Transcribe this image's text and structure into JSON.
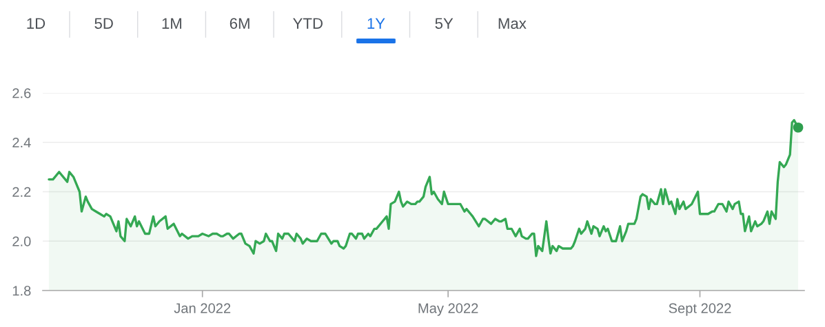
{
  "chart_data": {
    "type": "area",
    "annotations": [
      "1D",
      "5D",
      "1M",
      "6M",
      "YTD",
      "1Y",
      "5Y",
      "Max"
    ],
    "xlim": [
      "2021-10-15",
      "2022-10-22"
    ],
    "xticks": [
      {
        "value": "2022-01-01",
        "label": "Jan 2022"
      },
      {
        "value": "2022-05-01",
        "label": "May 2022"
      },
      {
        "value": "2022-09-01",
        "label": "Sept 2022"
      }
    ],
    "ylim": [
      1.8,
      2.6
    ],
    "yticks": [
      1.8,
      {
        "value": 2,
        "label": "2.0"
      },
      2.2,
      2.4,
      2.6
    ],
    "grid": "y",
    "x": [
      "2021-10-18",
      "2021-10-20",
      "2021-10-23",
      "2021-10-27",
      "2021-10-28",
      "2021-10-30",
      "2021-10-31",
      "2021-11-02",
      "2021-11-03",
      "2021-11-05",
      "2021-11-06",
      "2021-11-08",
      "2021-11-10",
      "2021-11-12",
      "2021-11-14",
      "2021-11-15",
      "2021-11-17",
      "2021-11-20",
      "2021-11-21",
      "2021-11-22",
      "2021-11-24",
      "2021-11-25",
      "2021-11-27",
      "2021-11-29",
      "2021-11-30",
      "2021-12-01",
      "2021-12-04",
      "2021-12-06",
      "2021-12-08",
      "2021-12-09",
      "2021-12-11",
      "2021-12-14",
      "2021-12-15",
      "2021-12-18",
      "2021-12-21",
      "2021-12-22",
      "2021-12-25",
      "2021-12-27",
      "2021-12-30",
      "2022-01-01",
      "2022-01-04",
      "2022-01-06",
      "2022-01-08",
      "2022-01-10",
      "2022-01-11",
      "2022-01-13",
      "2022-01-14",
      "2022-01-16",
      "2022-01-19",
      "2022-01-20",
      "2022-01-22",
      "2022-01-24",
      "2022-01-26",
      "2022-01-27",
      "2022-01-29",
      "2022-01-31",
      "2022-02-01",
      "2022-02-03",
      "2022-02-04",
      "2022-02-06",
      "2022-02-07",
      "2022-02-09",
      "2022-02-10",
      "2022-02-12",
      "2022-02-15",
      "2022-02-16",
      "2022-02-18",
      "2022-02-19",
      "2022-02-21",
      "2022-02-23",
      "2022-02-26",
      "2022-02-28",
      "2022-03-02",
      "2022-03-05",
      "2022-03-06",
      "2022-03-08",
      "2022-03-09",
      "2022-03-11",
      "2022-03-12",
      "2022-03-14",
      "2022-03-15",
      "2022-03-17",
      "2022-03-18",
      "2022-03-20",
      "2022-03-21",
      "2022-03-23",
      "2022-03-24",
      "2022-03-26",
      "2022-03-27",
      "2022-03-30",
      "2022-04-01",
      "2022-04-02",
      "2022-04-03",
      "2022-04-05",
      "2022-04-07",
      "2022-04-08",
      "2022-04-09",
      "2022-04-11",
      "2022-04-13",
      "2022-04-15",
      "2022-04-16",
      "2022-04-17",
      "2022-04-19",
      "2022-04-20",
      "2022-04-22",
      "2022-04-23",
      "2022-04-24",
      "2022-04-26",
      "2022-04-28",
      "2022-04-29",
      "2022-05-01",
      "2022-05-07",
      "2022-05-09",
      "2022-05-10",
      "2022-05-12",
      "2022-05-13",
      "2022-05-16",
      "2022-05-18",
      "2022-05-19",
      "2022-05-22",
      "2022-05-24",
      "2022-05-26",
      "2022-05-27",
      "2022-05-29",
      "2022-05-30",
      "2022-06-01",
      "2022-06-03",
      "2022-06-05",
      "2022-06-06",
      "2022-06-08",
      "2022-06-09",
      "2022-06-11",
      "2022-06-12",
      "2022-06-13",
      "2022-06-14",
      "2022-06-16",
      "2022-06-18",
      "2022-06-19",
      "2022-06-20",
      "2022-06-21",
      "2022-06-23",
      "2022-06-24",
      "2022-06-26",
      "2022-06-30",
      "2022-07-01",
      "2022-07-02",
      "2022-07-04",
      "2022-07-05",
      "2022-07-07",
      "2022-07-08",
      "2022-07-10",
      "2022-07-11",
      "2022-07-13",
      "2022-07-14",
      "2022-07-16",
      "2022-07-17",
      "2022-07-18",
      "2022-07-20",
      "2022-07-22",
      "2022-07-24",
      "2022-07-25",
      "2022-07-27",
      "2022-07-28",
      "2022-07-31",
      "2022-08-01",
      "2022-08-03",
      "2022-08-04",
      "2022-08-06",
      "2022-08-07",
      "2022-08-08",
      "2022-08-10",
      "2022-08-11",
      "2022-08-13",
      "2022-08-14",
      "2022-08-15",
      "2022-08-17",
      "2022-08-18",
      "2022-08-20",
      "2022-08-21",
      "2022-08-22",
      "2022-08-24",
      "2022-08-25",
      "2022-08-28",
      "2022-08-31",
      "2022-09-01",
      "2022-09-05",
      "2022-09-07",
      "2022-09-08",
      "2022-09-10",
      "2022-09-12",
      "2022-09-14",
      "2022-09-15",
      "2022-09-17",
      "2022-09-18",
      "2022-09-20",
      "2022-09-21",
      "2022-09-22",
      "2022-09-23",
      "2022-09-25",
      "2022-09-26",
      "2022-09-28",
      "2022-09-29",
      "2022-10-01",
      "2022-10-02",
      "2022-10-04",
      "2022-10-05",
      "2022-10-06",
      "2022-10-08",
      "2022-10-09",
      "2022-10-10",
      "2022-10-12",
      "2022-10-13",
      "2022-10-15",
      "2022-10-16",
      "2022-10-17",
      "2022-10-19"
    ],
    "series": [
      {
        "color": "#34a853",
        "values": [
          2.25,
          2.25,
          2.28,
          2.24,
          2.28,
          2.26,
          2.24,
          2.2,
          2.12,
          2.18,
          2.16,
          2.13,
          2.12,
          2.11,
          2.1,
          2.11,
          2.1,
          2.04,
          2.08,
          2.02,
          2.0,
          2.09,
          2.06,
          2.1,
          2.06,
          2.08,
          2.03,
          2.03,
          2.1,
          2.06,
          2.08,
          2.1,
          2.05,
          2.07,
          2.02,
          2.03,
          2.01,
          2.02,
          2.02,
          2.03,
          2.02,
          2.03,
          2.03,
          2.02,
          2.02,
          2.03,
          2.03,
          2.01,
          2.03,
          2.03,
          1.99,
          1.98,
          1.95,
          2.0,
          1.99,
          2.0,
          2.03,
          2.0,
          2.0,
          1.96,
          2.03,
          2.01,
          2.03,
          2.03,
          2.0,
          2.03,
          2.01,
          1.99,
          2.01,
          2.0,
          2.0,
          2.03,
          2.03,
          1.99,
          2.0,
          2.0,
          1.98,
          1.97,
          1.98,
          2.03,
          2.03,
          2.01,
          2.03,
          2.03,
          2.01,
          2.03,
          2.02,
          2.05,
          2.05,
          2.08,
          2.1,
          2.05,
          2.15,
          2.16,
          2.2,
          2.16,
          2.14,
          2.16,
          2.15,
          2.15,
          2.16,
          2.16,
          2.18,
          2.22,
          2.26,
          2.19,
          2.2,
          2.17,
          2.15,
          2.2,
          2.15,
          2.15,
          2.12,
          2.13,
          2.11,
          2.1,
          2.06,
          2.09,
          2.09,
          2.07,
          2.09,
          2.08,
          2.08,
          2.09,
          2.05,
          2.05,
          2.02,
          2.05,
          2.02,
          2.01,
          2.01,
          2.03,
          2.03,
          1.94,
          1.98,
          1.96,
          2.08,
          2.01,
          1.95,
          1.98,
          1.96,
          1.98,
          1.97,
          1.97,
          1.98,
          2.0,
          2.05,
          2.03,
          2.05,
          2.08,
          2.03,
          2.06,
          2.05,
          2.02,
          2.06,
          2.04,
          2.05,
          2.0,
          2.0,
          2.06,
          2.0,
          2.04,
          2.07,
          2.07,
          2.09,
          2.18,
          2.19,
          2.18,
          2.13,
          2.17,
          2.15,
          2.15,
          2.21,
          2.15,
          2.21,
          2.15,
          2.16,
          2.11,
          2.17,
          2.13,
          2.16,
          2.13,
          2.15,
          2.2,
          2.11,
          2.11,
          2.12,
          2.12,
          2.15,
          2.15,
          2.12,
          2.16,
          2.13,
          2.15,
          2.16,
          2.11,
          2.11,
          2.04,
          2.1,
          2.04,
          2.08,
          2.06,
          2.07,
          2.08,
          2.12,
          2.07,
          2.12,
          2.09,
          2.24,
          2.32,
          2.3,
          2.31,
          2.35,
          2.48,
          2.49,
          2.46
        ]
      },
      {
        "type": "scatter",
        "color": "#2e9e4e",
        "marker": "circle",
        "x": [
          "2022-10-19"
        ],
        "values": [
          2.46
        ]
      }
    ]
  }
}
